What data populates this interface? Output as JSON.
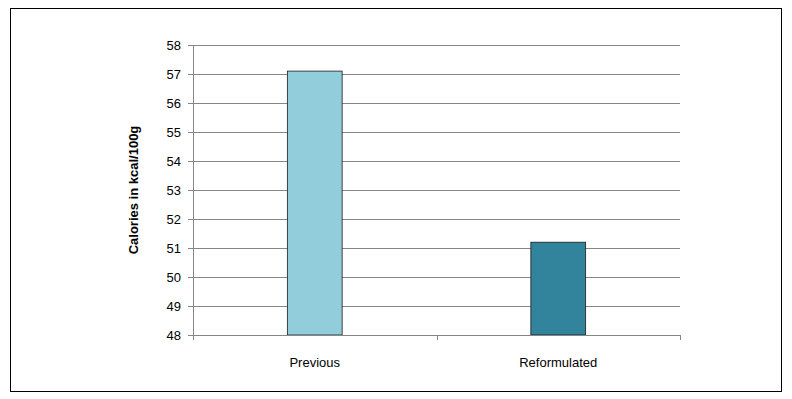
{
  "chart_data": {
    "type": "bar",
    "y_label": "Calories in kcal/100g",
    "categories": [
      "Previous",
      "Reformulated"
    ],
    "values": [
      57.1,
      51.2
    ],
    "colors": [
      "#92cddc",
      "#31849b"
    ],
    "ylim": [
      48,
      58
    ],
    "yticks": [
      48,
      49,
      50,
      51,
      52,
      53,
      54,
      55,
      56,
      57,
      58
    ],
    "grid": true
  }
}
